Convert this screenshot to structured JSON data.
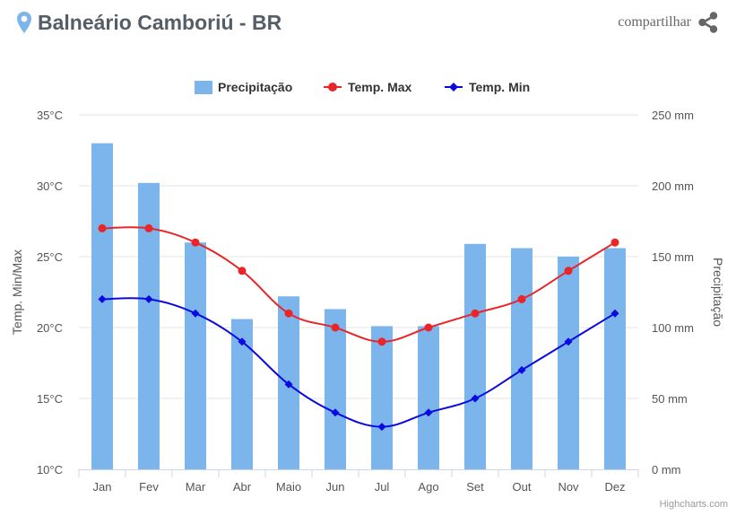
{
  "header": {
    "title": "Balneário Camboriú - BR",
    "share_label": "compartilhar",
    "pin_icon": "map-pin-icon",
    "share_icon": "share-icon",
    "pin_color": "#7cb5ec"
  },
  "credit": "Highcharts.com",
  "chart_data": {
    "type": "bar+line",
    "categories": [
      "Jan",
      "Fev",
      "Mar",
      "Abr",
      "Maio",
      "Jun",
      "Jul",
      "Ago",
      "Set",
      "Out",
      "Nov",
      "Dez"
    ],
    "series": [
      {
        "name": "Precipitação",
        "type": "bar",
        "axis": "right",
        "color": "#7cb5ec",
        "values": [
          230,
          202,
          160,
          106,
          122,
          113,
          101,
          101,
          159,
          156,
          150,
          156
        ]
      },
      {
        "name": "Temp. Max",
        "type": "line",
        "axis": "left",
        "color": "#e8262a",
        "marker": "circle",
        "values": [
          27,
          27,
          26,
          24,
          21,
          20,
          19,
          20,
          21,
          22,
          24,
          26
        ]
      },
      {
        "name": "Temp. Min",
        "type": "line",
        "axis": "left",
        "color": "#0a0ae0",
        "marker": "diamond",
        "values": [
          22,
          22,
          21,
          19,
          16,
          14,
          13,
          14,
          15,
          17,
          19,
          21
        ]
      }
    ],
    "y_left": {
      "label": "Temp. Min/Max",
      "min": 10,
      "max": 35,
      "ticks": [
        "10°C",
        "15°C",
        "20°C",
        "25°C",
        "30°C",
        "35°C"
      ]
    },
    "y_right": {
      "label": "Precipitação",
      "min": 0,
      "max": 250,
      "ticks": [
        "0 mm",
        "50 mm",
        "100 mm",
        "150 mm",
        "200 mm",
        "250 mm"
      ]
    },
    "grid": true,
    "legend_position": "top-center"
  }
}
